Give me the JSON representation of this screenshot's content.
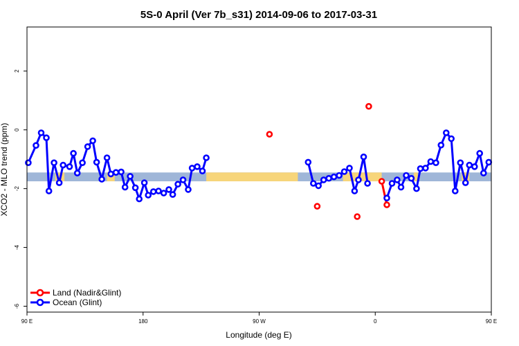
{
  "chart_data": {
    "type": "line",
    "title": "5S-0 April (Ver 7b_s31)   2014-09-06 to 2017-03-31",
    "xlabel": "Longitude (deg E)",
    "ylabel": "XCO2 - MLO trend (ppm)",
    "xlim": [
      90,
      450
    ],
    "ylim": [
      -6.2,
      3.5
    ],
    "x_ticks": [
      {
        "value": 90,
        "label": "90 E"
      },
      {
        "value": 180,
        "label": "180"
      },
      {
        "value": 270,
        "label": "90 W"
      },
      {
        "value": 360,
        "label": "0"
      },
      {
        "value": 450,
        "label": "90 E"
      }
    ],
    "y_ticks": [
      {
        "value": 2,
        "label": "2"
      },
      {
        "value": 0,
        "label": "0"
      },
      {
        "value": -2,
        "label": "-2"
      },
      {
        "value": -4,
        "label": "-4"
      },
      {
        "value": -6,
        "label": "-6"
      }
    ],
    "land_band": {
      "y_from": -1.75,
      "y_to": -1.45,
      "ocean_color": "#9FB6D8",
      "land_color": "#F7D57A"
    },
    "series": [
      {
        "name": "Land (Nadir&Glint)",
        "color": "#FF0000",
        "points": [
          [
            278,
            -0.15
          ],
          [
            315,
            -2.6
          ],
          [
            346,
            -2.95
          ],
          [
            355,
            0.8
          ],
          [
            365,
            -1.75
          ],
          [
            369,
            -2.55
          ]
        ]
      },
      {
        "name": "Ocean (Glint)",
        "color": "#0000FF",
        "points": [
          [
            91,
            -1.12
          ],
          [
            97,
            -0.53
          ],
          [
            101,
            -0.1
          ],
          [
            105,
            -0.27
          ],
          [
            107,
            -2.08
          ],
          [
            111,
            -1.12
          ],
          [
            115,
            -1.8
          ],
          [
            118,
            -1.2
          ],
          [
            123,
            -1.25
          ],
          [
            126,
            -0.8
          ],
          [
            129,
            -1.47
          ],
          [
            133,
            -1.12
          ],
          [
            137,
            -0.57
          ],
          [
            141,
            -0.37
          ],
          [
            144,
            -1.1
          ],
          [
            148,
            -1.68
          ],
          [
            152,
            -0.95
          ],
          [
            155,
            -1.5
          ],
          [
            159,
            -1.45
          ],
          [
            163,
            -1.43
          ],
          [
            166,
            -1.95
          ],
          [
            170,
            -1.58
          ],
          [
            174,
            -1.97
          ],
          [
            177,
            -2.35
          ],
          [
            181,
            -1.8
          ],
          [
            184,
            -2.22
          ],
          [
            188,
            -2.1
          ],
          [
            192,
            -2.08
          ],
          [
            196,
            -2.15
          ],
          [
            200,
            -2.03
          ],
          [
            203,
            -2.2
          ],
          [
            207,
            -1.85
          ],
          [
            211,
            -1.7
          ],
          [
            215,
            -2.03
          ],
          [
            218,
            -1.3
          ],
          [
            222,
            -1.25
          ],
          [
            226,
            -1.4
          ],
          [
            229,
            -0.95
          ],
          [
            308,
            -1.1
          ],
          [
            312,
            -1.82
          ],
          [
            316,
            -1.9
          ],
          [
            320,
            -1.7
          ],
          [
            324,
            -1.65
          ],
          [
            328,
            -1.6
          ],
          [
            332,
            -1.55
          ],
          [
            336,
            -1.42
          ],
          [
            340,
            -1.3
          ],
          [
            344,
            -2.08
          ],
          [
            347,
            -1.7
          ],
          [
            351,
            -0.92
          ],
          [
            354,
            -1.82
          ],
          [
            369,
            -2.32
          ],
          [
            373,
            -1.82
          ],
          [
            377,
            -1.7
          ],
          [
            380,
            -1.95
          ],
          [
            384,
            -1.55
          ],
          [
            388,
            -1.65
          ],
          [
            392,
            -2.0
          ],
          [
            395,
            -1.32
          ],
          [
            399,
            -1.3
          ],
          [
            403,
            -1.08
          ],
          [
            407,
            -1.12
          ],
          [
            411,
            -0.52
          ],
          [
            415,
            -0.1
          ],
          [
            419,
            -0.3
          ],
          [
            422,
            -2.08
          ],
          [
            426,
            -1.12
          ],
          [
            430,
            -1.8
          ],
          [
            433,
            -1.2
          ],
          [
            437,
            -1.25
          ],
          [
            441,
            -0.8
          ],
          [
            444,
            -1.47
          ],
          [
            448,
            -1.1
          ]
        ]
      }
    ],
    "gaps_after_x": [
      229,
      354
    ],
    "legend_position": "bottom-left"
  }
}
